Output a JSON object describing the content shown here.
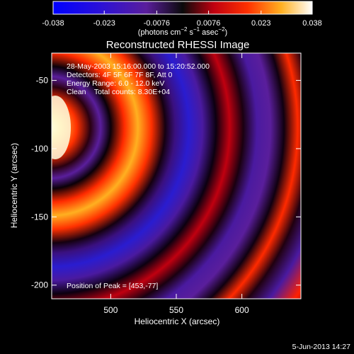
{
  "colorbar": {
    "tick_labels": [
      "-0.038",
      "-0.023",
      "-0.0076",
      "0.0076",
      "0.023",
      "0.038"
    ],
    "tick_values": [
      -0.038,
      -0.023,
      -0.0076,
      0.0076,
      0.023,
      0.038
    ],
    "range": [
      -0.038,
      0.038
    ],
    "units_prefix": "(photons cm",
    "units_exp1": "−2",
    "units_mid": " s",
    "units_exp2": "−1",
    "units_mid2": " asec",
    "units_exp3": "−2",
    "units_suffix": ")"
  },
  "chart_data": {
    "type": "heatmap",
    "title": "Reconstructed RHESSI Image",
    "xlabel": "Heliocentric X (arcsec)",
    "ylabel": "Heliocentric Y (arcsec)",
    "xlim": [
      455,
      645
    ],
    "ylim": [
      -210,
      -30
    ],
    "x_ticks": [
      500,
      550,
      600
    ],
    "y_ticks": [
      -50,
      -100,
      -150,
      -200
    ],
    "peak_position": [
      453,
      -77
    ],
    "colormap_stops": [
      "#0000ff",
      "#5a1e9c",
      "#000000",
      "#ff2000",
      "#ffd030",
      "#ffffff"
    ],
    "annotations": [
      "28-May-2003 15:16:00.000 to 15:20:52.000",
      "Detectors: 4F 5F 6F 7F 8F, Att 0",
      "Energy Range: 6.0 - 12.0 keV",
      "Clean    Total counts: 8.30E+04"
    ],
    "peak_label": "Position of Peak = [453,-77]"
  },
  "footer": {
    "date": "5-Jun-2013 14:27"
  }
}
